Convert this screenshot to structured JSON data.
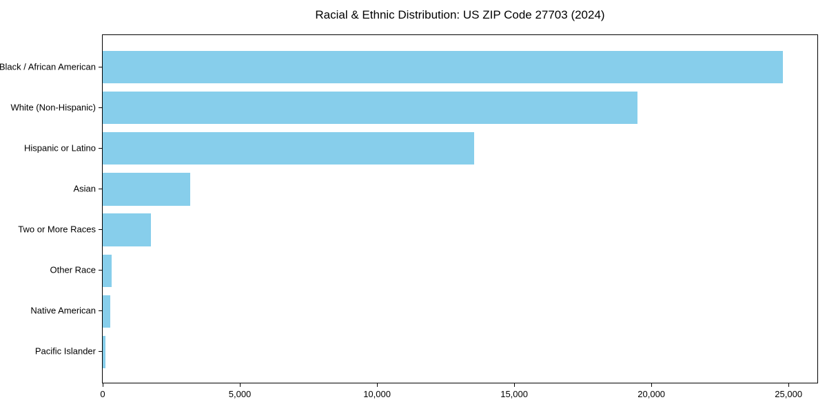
{
  "window": {
    "background_color": "#ffffff"
  },
  "chart_data": {
    "type": "bar",
    "orientation": "horizontal",
    "title": "Racial & Ethnic Distribution: US ZIP Code 27703 (2024)",
    "categories": [
      "Black / African American",
      "White (Non-Hispanic)",
      "Hispanic or Latino",
      "Asian",
      "Two or More Races",
      "Other Race",
      "Native American",
      "Pacific Islander"
    ],
    "values": [
      24800,
      19500,
      13550,
      3190,
      1760,
      320,
      280,
      90
    ],
    "xlabel": "",
    "ylabel": "",
    "xlim": [
      0,
      26050
    ],
    "xticks": [
      0,
      5000,
      10000,
      15000,
      20000,
      25000
    ],
    "xtick_labels": [
      "0",
      "5,000",
      "10,000",
      "15,000",
      "20,000",
      "25,000"
    ],
    "bar_color": "#87CEEB",
    "axis_color": "#000000",
    "text_color": "#000000",
    "grid": false,
    "legend": null
  }
}
